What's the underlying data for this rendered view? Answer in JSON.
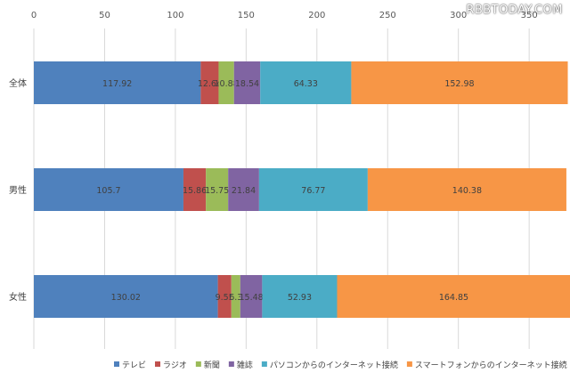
{
  "watermark": "RBBTODAY.COM",
  "chart_data": {
    "type": "bar",
    "orientation": "horizontal",
    "stacked": true,
    "categories": [
      "全体",
      "男性",
      "女性"
    ],
    "series": [
      {
        "name": "テレビ",
        "color": "#4f81bd",
        "values": [
          117.92,
          105.7,
          130.02
        ]
      },
      {
        "name": "ラジオ",
        "color": "#c0504d",
        "values": [
          12.64,
          15.86,
          9.55
        ]
      },
      {
        "name": "新聞",
        "color": "#9bbb59",
        "values": [
          10.88,
          15.75,
          6.3
        ]
      },
      {
        "name": "雑誌",
        "color": "#8064a2",
        "values": [
          18.54,
          21.84,
          15.48
        ]
      },
      {
        "name": "パソコンからのインターネット接続",
        "color": "#4bacc6",
        "values": [
          64.33,
          76.77,
          52.93
        ]
      },
      {
        "name": "スマートフォンからのインターネット接続",
        "color": "#f79646",
        "values": [
          152.98,
          140.38,
          164.85
        ]
      }
    ],
    "value_labels": [
      [
        "117.92",
        "12.64",
        "10.88",
        "18.54",
        "64.33",
        "152.98"
      ],
      [
        "105.7",
        "15.86",
        "15.75",
        "21.84",
        "76.77",
        "140.38"
      ],
      [
        "130.02",
        "9.55",
        "6.3",
        "15.48",
        "52.93",
        "164.85"
      ]
    ],
    "xticks": [
      "0",
      "50",
      "100",
      "150",
      "200",
      "250",
      "300",
      "350"
    ],
    "xlim": [
      0,
      370
    ],
    "grid": true,
    "axis_position": "top",
    "legend_position": "bottom"
  }
}
